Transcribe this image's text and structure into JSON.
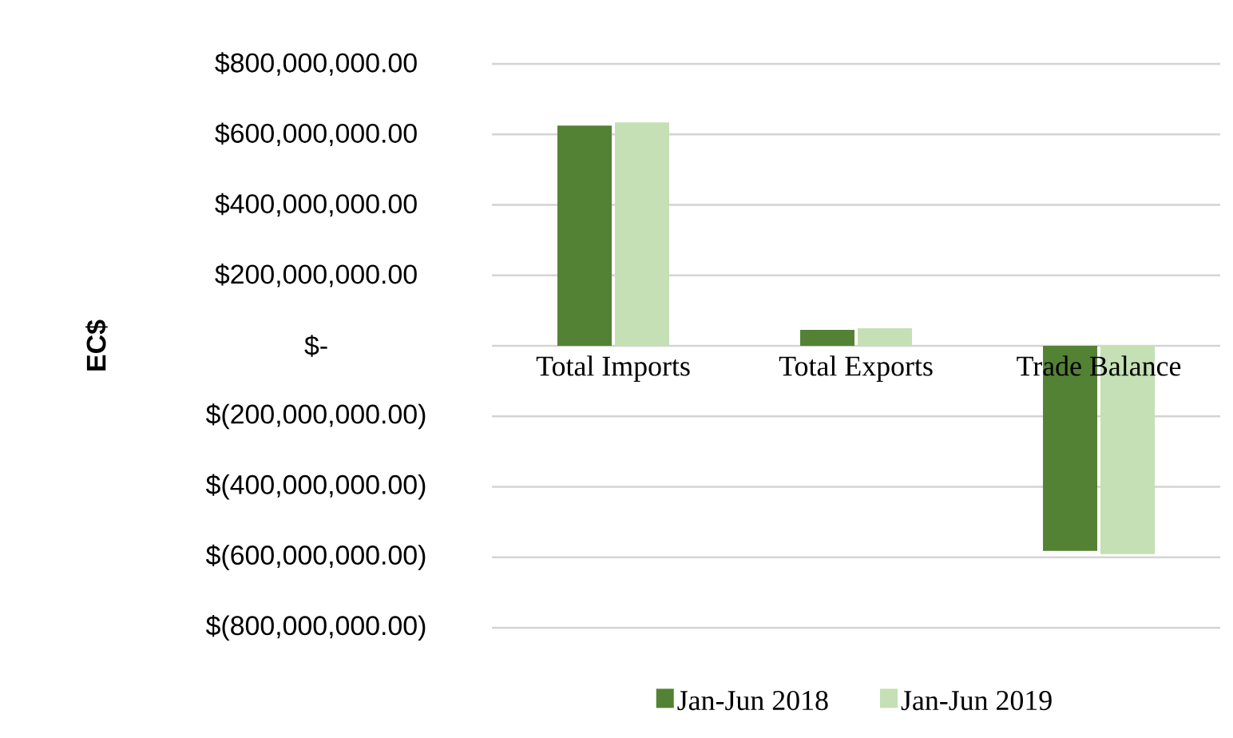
{
  "chart_data": {
    "type": "bar",
    "ylabel": "EC$",
    "categories": [
      "Total Imports",
      "Total Exports",
      "Trade Balance"
    ],
    "series": [
      {
        "name": "Jan-Jun 2018",
        "color": "#548235",
        "values": [
          625000000,
          45000000,
          -582000000
        ]
      },
      {
        "name": "Jan-Jun 2019",
        "color": "#c5e0b4",
        "values": [
          634000000,
          50000000,
          -591000000
        ]
      }
    ],
    "ylim": [
      -800000000,
      800000000
    ],
    "yticks": [
      {
        "value": -800000000,
        "label": "$(800,000,000.00)"
      },
      {
        "value": -600000000,
        "label": "$(600,000,000.00)"
      },
      {
        "value": -400000000,
        "label": "$(400,000,000.00)"
      },
      {
        "value": -200000000,
        "label": "$(200,000,000.00)"
      },
      {
        "value": 0,
        "label": "$-"
      },
      {
        "value": 200000000,
        "label": "$200,000,000.00"
      },
      {
        "value": 400000000,
        "label": "$400,000,000.00"
      },
      {
        "value": 600000000,
        "label": "$600,000,000.00"
      },
      {
        "value": 800000000,
        "label": "$800,000,000.00"
      }
    ],
    "grid": "y",
    "legend": "bottom"
  }
}
